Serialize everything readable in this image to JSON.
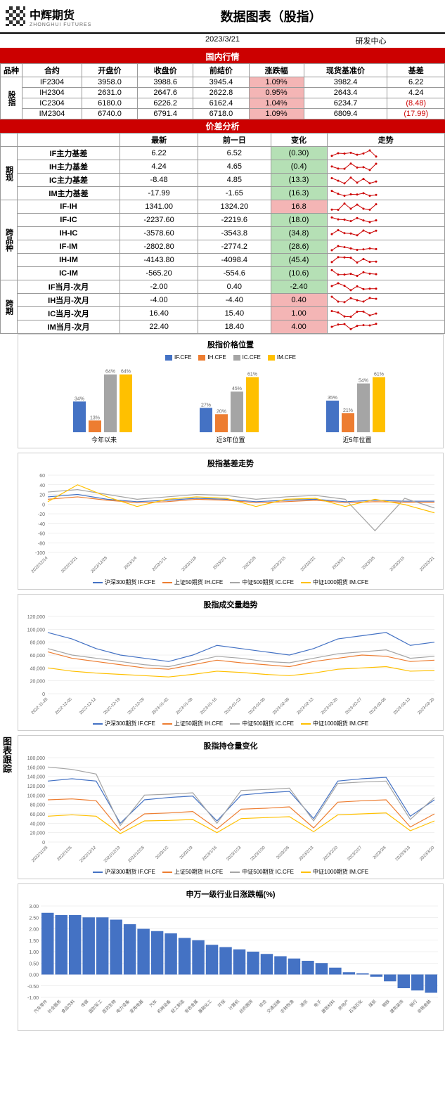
{
  "header": {
    "company": "中辉期货",
    "company_en": "ZHONGHUI FUTURES",
    "title": "数据图表（股指）",
    "date": "2023/3/21",
    "dept": "研发中心"
  },
  "section_domestic": "国内行情",
  "domestic": {
    "side_label": "股指",
    "columns": [
      "品种",
      "合约",
      "开盘价",
      "收盘价",
      "前结价",
      "涨跌幅",
      "现货基准价",
      "基差"
    ],
    "rows": [
      {
        "contract": "IF2304",
        "open": "3958.0",
        "close": "3988.6",
        "prev": "3945.4",
        "chg": "1.09%",
        "spot": "3982.4",
        "basis": "6.22",
        "neg": false
      },
      {
        "contract": "IH2304",
        "open": "2631.0",
        "close": "2647.6",
        "prev": "2622.8",
        "chg": "0.95%",
        "spot": "2643.4",
        "basis": "4.24",
        "neg": false
      },
      {
        "contract": "IC2304",
        "open": "6180.0",
        "close": "6226.2",
        "prev": "6162.4",
        "chg": "1.04%",
        "spot": "6234.7",
        "basis": "(8.48)",
        "neg": true
      },
      {
        "contract": "IM2304",
        "open": "6740.0",
        "close": "6791.4",
        "prev": "6718.0",
        "chg": "1.09%",
        "spot": "6809.4",
        "basis": "(17.99)",
        "neg": true
      }
    ]
  },
  "section_spread": "价差分析",
  "spread": {
    "columns": [
      "",
      "",
      "最新",
      "前一日",
      "变化",
      "走势"
    ],
    "groups": [
      {
        "label": "期现",
        "rows": [
          {
            "name": "IF主力基差",
            "latest": "6.22",
            "prev": "6.52",
            "chg": "(0.30)",
            "chg_bg": "green"
          },
          {
            "name": "IH主力基差",
            "latest": "4.24",
            "prev": "4.65",
            "chg": "(0.4)",
            "chg_bg": "green"
          },
          {
            "name": "IC主力基差",
            "latest": "-8.48",
            "prev": "4.85",
            "chg": "(13.3)",
            "chg_bg": "green"
          },
          {
            "name": "IM主力基差",
            "latest": "-17.99",
            "prev": "-1.65",
            "chg": "(16.3)",
            "chg_bg": "green"
          }
        ]
      },
      {
        "label": "跨品种",
        "rows": [
          {
            "name": "IF-IH",
            "latest": "1341.00",
            "prev": "1324.20",
            "chg": "16.8",
            "chg_bg": "pink"
          },
          {
            "name": "IF-IC",
            "latest": "-2237.60",
            "prev": "-2219.6",
            "chg": "(18.0)",
            "chg_bg": "green"
          },
          {
            "name": "IH-IC",
            "latest": "-3578.60",
            "prev": "-3543.8",
            "chg": "(34.8)",
            "chg_bg": "green"
          },
          {
            "name": "IF-IM",
            "latest": "-2802.80",
            "prev": "-2774.2",
            "chg": "(28.6)",
            "chg_bg": "green"
          },
          {
            "name": "IH-IM",
            "latest": "-4143.80",
            "prev": "-4098.4",
            "chg": "(45.4)",
            "chg_bg": "green"
          },
          {
            "name": "IC-IM",
            "latest": "-565.20",
            "prev": "-554.6",
            "chg": "(10.6)",
            "chg_bg": "green"
          }
        ]
      },
      {
        "label": "跨期",
        "rows": [
          {
            "name": "IF当月-次月",
            "latest": "-2.00",
            "prev": "0.40",
            "chg": "-2.40",
            "chg_bg": "green"
          },
          {
            "name": "IH当月-次月",
            "latest": "-4.00",
            "prev": "-4.40",
            "chg": "0.40",
            "chg_bg": "pink"
          },
          {
            "name": "IC当月-次月",
            "latest": "16.40",
            "prev": "15.40",
            "chg": "1.00",
            "chg_bg": "pink"
          },
          {
            "name": "IM当月-次月",
            "latest": "22.40",
            "prev": "18.40",
            "chg": "4.00",
            "chg_bg": "pink"
          }
        ]
      }
    ]
  },
  "charts_label": "图表跟踪",
  "colors": {
    "IF": "#4472c4",
    "IH": "#ed7d31",
    "IC": "#a5a5a5",
    "IM": "#ffc000",
    "bar": "#4472c4",
    "grid": "#e0e0e0"
  },
  "position_chart": {
    "title": "股指价格位置",
    "legend": [
      "IF.CFE",
      "IH.CFE",
      "IC.CFE",
      "IM.CFE"
    ],
    "groups": [
      {
        "label": "今年以来",
        "values": [
          34,
          13,
          64,
          64
        ],
        "labels": [
          "34%",
          "13%",
          "64%",
          "64%"
        ]
      },
      {
        "label": "近3年位置",
        "values": [
          27,
          20,
          45,
          61
        ],
        "labels": [
          "27%",
          "20%",
          "45%",
          "61%"
        ]
      },
      {
        "label": "近5年位置",
        "values": [
          35,
          21,
          54,
          61
        ],
        "labels": [
          "35%",
          "21%",
          "54%",
          "61%"
        ]
      }
    ]
  },
  "basis_trend": {
    "title": "股指基差走势",
    "legend": [
      "沪深300期货 IF.CFE",
      "上证50期货 IH.CFE",
      "中证500期货 IC.CFE",
      "中证1000期货 IM.CFE"
    ],
    "ylim": [
      -100,
      60
    ],
    "yticks": [
      -100,
      -80,
      -60,
      -40,
      -20,
      0,
      20,
      40,
      60
    ],
    "dates": [
      "2022/12/14",
      "2022/12/21",
      "2022/12/28",
      "2023/1/4",
      "2023/1/11",
      "2023/1/18",
      "2023/2/1",
      "2023/2/8",
      "2023/2/15",
      "2023/2/22",
      "2023/3/1",
      "2023/3/8",
      "2023/3/15",
      "2023/3/21"
    ],
    "series": {
      "IF": [
        15,
        20,
        10,
        5,
        8,
        12,
        10,
        5,
        8,
        10,
        5,
        8,
        6,
        6
      ],
      "IH": [
        10,
        15,
        8,
        3,
        5,
        10,
        8,
        3,
        5,
        8,
        3,
        5,
        4,
        4
      ],
      "IC": [
        25,
        30,
        20,
        10,
        15,
        20,
        18,
        10,
        15,
        18,
        10,
        -55,
        12,
        -8
      ],
      "IM": [
        5,
        40,
        15,
        -5,
        10,
        15,
        12,
        -5,
        10,
        12,
        -5,
        10,
        -1,
        -18
      ]
    }
  },
  "volume_trend": {
    "title": "股指成交量趋势",
    "legend": [
      "沪深300期货 IF.CFE",
      "上证50期货 IH.CFE",
      "中证500期货 IC.CFE",
      "中证1000期货 IM.CFE"
    ],
    "ylim": [
      0,
      120000
    ],
    "yticks": [
      0,
      20000,
      40000,
      60000,
      80000,
      100000,
      120000
    ],
    "dates": [
      "2022-11-28",
      "2022-12-05",
      "2022-12-12",
      "2022-12-19",
      "2022-12-26",
      "2023-01-02",
      "2023-01-09",
      "2023-01-16",
      "2023-01-23",
      "2023-01-30",
      "2023-02-06",
      "2023-02-13",
      "2023-02-20",
      "2023-02-27",
      "2023-03-06",
      "2023-03-13",
      "2023-03-20"
    ],
    "series": {
      "IF": [
        95000,
        85000,
        70000,
        60000,
        55000,
        50000,
        60000,
        75000,
        70000,
        65000,
        60000,
        70000,
        85000,
        90000,
        95000,
        75000,
        80000
      ],
      "IH": [
        65000,
        55000,
        50000,
        45000,
        40000,
        38000,
        45000,
        52000,
        48000,
        45000,
        42000,
        50000,
        55000,
        60000,
        58000,
        50000,
        52000
      ],
      "IC": [
        70000,
        60000,
        55000,
        50000,
        45000,
        42000,
        50000,
        58000,
        55000,
        50000,
        48000,
        55000,
        62000,
        65000,
        68000,
        55000,
        58000
      ],
      "IM": [
        40000,
        35000,
        32000,
        30000,
        28000,
        26000,
        30000,
        35000,
        33000,
        30000,
        28000,
        32000,
        38000,
        40000,
        42000,
        35000,
        36000
      ]
    }
  },
  "oi_trend": {
    "title": "股指持仓量变化",
    "legend": [
      "沪深300期货 IF.CFE",
      "上证50期货 IH.CFE",
      "中证500期货 IC.CFE",
      "中证1000期货 IM.CFE"
    ],
    "ylim": [
      0,
      180000
    ],
    "yticks": [
      0,
      20000,
      40000,
      60000,
      80000,
      100000,
      120000,
      140000,
      160000,
      180000
    ],
    "dates": [
      "2022/11/28",
      "2022/12/5",
      "2022/12/12",
      "2022/12/19",
      "2022/12/26",
      "2023/1/2",
      "2023/1/9",
      "2023/1/16",
      "2023/1/23",
      "2023/1/30",
      "2023/2/6",
      "2023/2/13",
      "2023/2/20",
      "2023/2/27",
      "2023/3/6",
      "2023/3/13",
      "2023/3/20"
    ],
    "series": {
      "IF": [
        130000,
        135000,
        130000,
        40000,
        90000,
        95000,
        98000,
        45000,
        100000,
        105000,
        108000,
        50000,
        130000,
        135000,
        138000,
        55000,
        90000
      ],
      "IH": [
        90000,
        92000,
        88000,
        25000,
        60000,
        62000,
        65000,
        28000,
        70000,
        72000,
        75000,
        30000,
        85000,
        88000,
        90000,
        32000,
        60000
      ],
      "IC": [
        160000,
        155000,
        145000,
        35000,
        100000,
        102000,
        105000,
        40000,
        110000,
        112000,
        115000,
        45000,
        125000,
        128000,
        130000,
        48000,
        95000
      ],
      "IM": [
        55000,
        58000,
        55000,
        18000,
        45000,
        46000,
        48000,
        20000,
        50000,
        52000,
        54000,
        22000,
        58000,
        60000,
        62000,
        24000,
        45000
      ]
    }
  },
  "industry": {
    "title": "申万一级行业日涨跌幅(%)",
    "ylim": [
      -1.0,
      3.0
    ],
    "yticks": [
      -1.0,
      -0.5,
      0,
      0.5,
      1.0,
      1.5,
      2.0,
      2.5,
      3.0
    ],
    "data": [
      {
        "name": "汽车零件",
        "v": 2.7
      },
      {
        "name": "社会服务",
        "v": 2.6
      },
      {
        "name": "食品饮料",
        "v": 2.6
      },
      {
        "name": "传媒",
        "v": 2.5
      },
      {
        "name": "国防军工",
        "v": 2.5
      },
      {
        "name": "医药生物",
        "v": 2.4
      },
      {
        "name": "电力设备",
        "v": 2.2
      },
      {
        "name": "家用电器",
        "v": 2.0
      },
      {
        "name": "汽车",
        "v": 1.9
      },
      {
        "name": "机械设备",
        "v": 1.8
      },
      {
        "name": "轻工制造",
        "v": 1.6
      },
      {
        "name": "有色金属",
        "v": 1.5
      },
      {
        "name": "基础化工",
        "v": 1.3
      },
      {
        "name": "环保",
        "v": 1.2
      },
      {
        "name": "计算机",
        "v": 1.1
      },
      {
        "name": "纺织服饰",
        "v": 1.0
      },
      {
        "name": "综合",
        "v": 0.9
      },
      {
        "name": "交通运输",
        "v": 0.8
      },
      {
        "name": "农林牧渔",
        "v": 0.7
      },
      {
        "name": "通信",
        "v": 0.6
      },
      {
        "name": "电子",
        "v": 0.5
      },
      {
        "name": "建筑材料",
        "v": 0.3
      },
      {
        "name": "房地产",
        "v": 0.1
      },
      {
        "name": "石油石化",
        "v": 0.05
      },
      {
        "name": "煤炭",
        "v": -0.1
      },
      {
        "name": "钢铁",
        "v": -0.3
      },
      {
        "name": "建筑装饰",
        "v": -0.6
      },
      {
        "name": "银行",
        "v": -0.7
      },
      {
        "name": "非银金融",
        "v": -0.8
      }
    ]
  }
}
